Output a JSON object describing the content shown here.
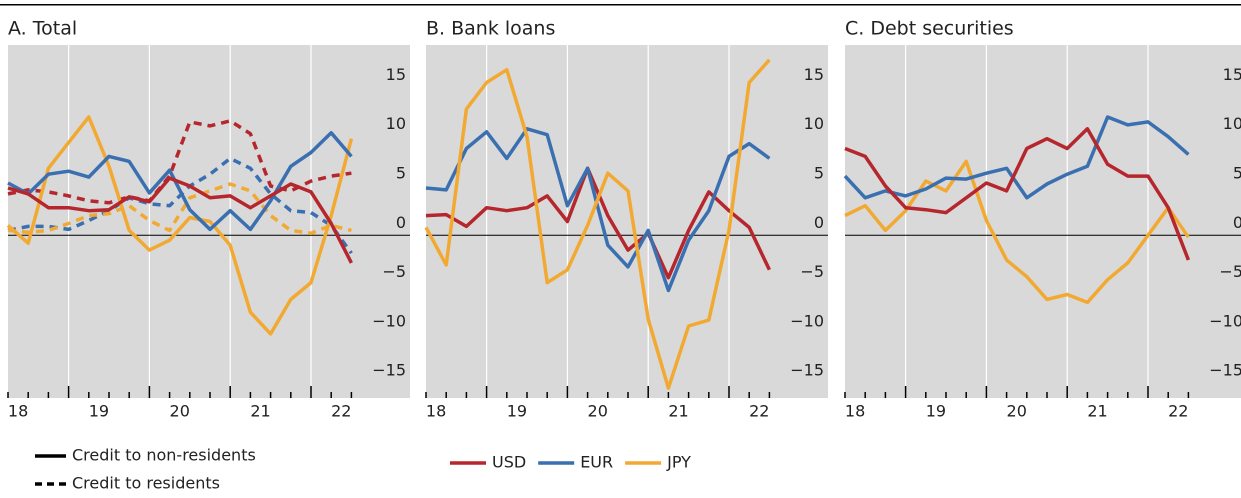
{
  "chart_data": [
    {
      "type": "line",
      "title": "A. Total",
      "categories": [
        "18",
        null,
        null,
        null,
        "19",
        null,
        null,
        null,
        "20",
        null,
        null,
        null,
        "21",
        null,
        null,
        null,
        "22",
        null
      ],
      "ylim": [
        -16.5,
        19.3
      ],
      "yticks": [
        {
          "value": -15,
          "label": "−15"
        },
        {
          "value": -10,
          "label": "−10"
        },
        {
          "value": -5,
          "label": "−5"
        },
        0,
        5,
        10,
        15
      ],
      "series": [
        {
          "name": "USD",
          "color": "#b5272d",
          "dashed": true,
          "values": [
            4.2,
            4.6,
            4.4,
            4.0,
            3.5,
            3.3,
            3.9,
            3.5,
            6.0,
            11.5,
            11.1,
            11.6,
            10.3,
            5.0,
            4.5,
            5.5,
            6.0,
            6.3
          ]
        },
        {
          "name": "EUR",
          "color": "#3a6fb0",
          "dashed": true,
          "values": [
            0.5,
            0.9,
            0.9,
            0.6,
            1.5,
            2.5,
            3.8,
            3.2,
            3.0,
            5.0,
            6.2,
            7.8,
            6.8,
            4.2,
            2.5,
            2.3,
            1.0,
            -1.8
          ]
        },
        {
          "name": "JPY",
          "color": "#f2a931",
          "dashed": true,
          "values": [
            0.5,
            0.3,
            0.5,
            1.2,
            2.0,
            2.2,
            3.0,
            1.5,
            0.5,
            3.8,
            4.5,
            5.2,
            4.5,
            2.0,
            0.5,
            0.2,
            1.0,
            0.5
          ]
        },
        {
          "name": "JPY",
          "color": "#f2a931",
          "dashed": false,
          "values": [
            1.0,
            -0.8,
            6.8,
            9.4,
            12.0,
            7.0,
            0.5,
            -1.5,
            -0.5,
            1.8,
            1.4,
            -1.0,
            -7.8,
            -10.0,
            -6.5,
            -4.8,
            2.0,
            9.8
          ]
        },
        {
          "name": "EUR",
          "color": "#3a6fb0",
          "dashed": false,
          "values": [
            5.3,
            4.2,
            6.2,
            6.5,
            5.9,
            8.0,
            7.5,
            4.3,
            6.6,
            2.6,
            0.6,
            2.5,
            0.6,
            3.5,
            7.0,
            8.4,
            10.4,
            8.0
          ]
        },
        {
          "name": "USD",
          "color": "#b5272d",
          "dashed": false,
          "values": [
            4.8,
            4.2,
            2.8,
            2.8,
            2.5,
            2.6,
            3.9,
            3.4,
            5.8,
            5.0,
            3.8,
            4.0,
            2.8,
            4.0,
            5.2,
            4.4,
            1.2,
            -2.8
          ]
        }
      ]
    },
    {
      "type": "line",
      "title": "B. Bank loans",
      "categories": [
        "18",
        null,
        null,
        null,
        "19",
        null,
        null,
        null,
        "20",
        null,
        null,
        null,
        "21",
        null,
        null,
        null,
        "22",
        null
      ],
      "ylim": [
        -16.5,
        19.3
      ],
      "yticks": [
        {
          "value": -15,
          "label": "−15"
        },
        {
          "value": -10,
          "label": "−10"
        },
        {
          "value": -5,
          "label": "−5"
        },
        0,
        5,
        10,
        15
      ],
      "series": [
        {
          "name": "USD",
          "color": "#b5272d",
          "dashed": false,
          "values": [
            2.0,
            2.1,
            0.9,
            2.8,
            2.5,
            2.8,
            4.0,
            1.4,
            6.8,
            2.0,
            -1.5,
            0.2,
            -4.3,
            0.5,
            4.4,
            2.5,
            0.8,
            -3.5
          ]
        },
        {
          "name": "EUR",
          "color": "#3a6fb0",
          "dashed": false,
          "values": [
            4.8,
            4.6,
            8.8,
            10.5,
            7.8,
            10.8,
            10.2,
            3.0,
            6.8,
            -1.0,
            -3.2,
            0.5,
            -5.6,
            -0.5,
            2.5,
            8.0,
            9.3,
            7.8
          ]
        },
        {
          "name": "JPY",
          "color": "#f2a931",
          "dashed": false,
          "values": [
            0.8,
            -3.0,
            12.8,
            15.5,
            16.8,
            10.0,
            -4.8,
            -3.5,
            1.0,
            6.3,
            4.5,
            -8.5,
            -15.5,
            -9.2,
            -8.6,
            0.5,
            15.5,
            17.8
          ]
        }
      ]
    },
    {
      "type": "line",
      "title": "C. Debt securities",
      "categories": [
        "18",
        null,
        null,
        null,
        "19",
        null,
        null,
        null,
        "20",
        null,
        null,
        null,
        "21",
        null,
        null,
        null,
        "22",
        null
      ],
      "ylim": [
        -16.5,
        19.3
      ],
      "yticks": [
        {
          "value": -15,
          "label": "−15"
        },
        {
          "value": -10,
          "label": "−10"
        },
        {
          "value": -5,
          "label": "−5"
        },
        0,
        5,
        10,
        15
      ],
      "series": [
        {
          "name": "JPY",
          "color": "#f2a931",
          "dashed": false,
          "values": [
            2.0,
            3.0,
            0.5,
            2.5,
            5.5,
            4.5,
            7.5,
            1.5,
            -2.5,
            -4.2,
            -6.5,
            -6.0,
            -6.8,
            -4.5,
            -2.8,
            0.0,
            2.8,
            -0.2
          ]
        },
        {
          "name": "EUR",
          "color": "#3a6fb0",
          "dashed": false,
          "values": [
            6.0,
            3.8,
            4.5,
            4.0,
            4.7,
            5.8,
            5.7,
            6.3,
            6.8,
            3.8,
            5.2,
            6.2,
            7.0,
            12.0,
            11.2,
            11.5,
            10.0,
            8.2
          ]
        },
        {
          "name": "USD",
          "color": "#b5272d",
          "dashed": false,
          "values": [
            8.8,
            8.0,
            5.0,
            2.8,
            2.6,
            2.3,
            3.8,
            5.3,
            4.5,
            8.8,
            9.8,
            8.8,
            10.8,
            7.2,
            6.0,
            6.0,
            2.8,
            -2.5
          ]
        }
      ]
    }
  ],
  "style_legend": [
    "Credit to non-residents",
    "Credit to residents"
  ]
}
